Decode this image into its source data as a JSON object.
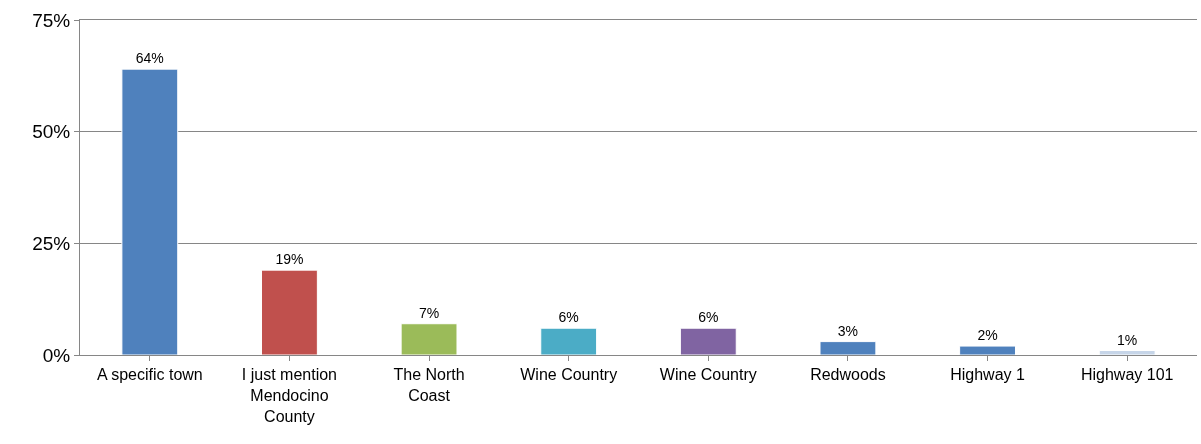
{
  "chart_data": {
    "type": "bar",
    "categories": [
      "A specific town",
      "I just mention\nMendocino\nCounty",
      "The North\nCoast",
      "Wine Country",
      "Wine Country",
      "Redwoods",
      "Highway 1",
      "Highway 101"
    ],
    "values": [
      64,
      19,
      7,
      6,
      6,
      3,
      2,
      1
    ],
    "colors": [
      "#4f81bd",
      "#c0504d",
      "#9bbb59",
      "#4bacc6",
      "#8064a2",
      "#4f81bd",
      "#4f81bd",
      "#c6d5e8"
    ],
    "value_labels": [
      "64%",
      "19%",
      "7%",
      "6%",
      "6%",
      "3%",
      "2%",
      "1%"
    ],
    "ylim": [
      0,
      75
    ],
    "yticks": [
      {
        "value": 0,
        "label": "0%"
      },
      {
        "value": 25,
        "label": "25%"
      },
      {
        "value": 50,
        "label": "50%"
      },
      {
        "value": 75,
        "label": "75%"
      }
    ],
    "grid": "y"
  }
}
